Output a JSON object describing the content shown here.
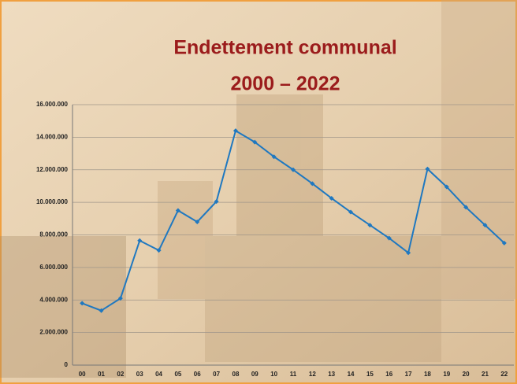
{
  "chart_data": {
    "type": "line",
    "title": "Endettement communal",
    "subtitle": "2000 – 2022",
    "categories": [
      "00",
      "01",
      "02",
      "03",
      "04",
      "05",
      "06",
      "07",
      "08",
      "09",
      "10",
      "11",
      "12",
      "13",
      "14",
      "15",
      "16",
      "17",
      "18",
      "19",
      "20",
      "21",
      "22"
    ],
    "series": [
      {
        "color": "#1f78c0",
        "values": [
          3800000,
          3350000,
          4100000,
          7650000,
          7050000,
          9500000,
          8800000,
          10050000,
          14400000,
          13700000,
          12800000,
          12000000,
          11150000,
          10250000,
          9400000,
          8600000,
          7800000,
          6900000,
          12050000,
          10950000,
          9700000,
          8600000,
          7500000
        ]
      }
    ],
    "ylim": [
      0,
      16000000
    ],
    "yticks": [
      0,
      {
        "value": 2000000,
        "label": "2.000.000"
      },
      {
        "value": 4000000,
        "label": "4.000.000"
      },
      {
        "value": 6000000,
        "label": "6.000.000"
      },
      {
        "value": 8000000,
        "label": "8.000.000"
      },
      {
        "value": 10000000,
        "label": "10.000.000"
      },
      {
        "value": 12000000,
        "label": "12.000.000"
      },
      {
        "value": 14000000,
        "label": "14.000.000"
      },
      {
        "value": 16000000,
        "label": "16.000.000"
      }
    ],
    "grid": true
  }
}
